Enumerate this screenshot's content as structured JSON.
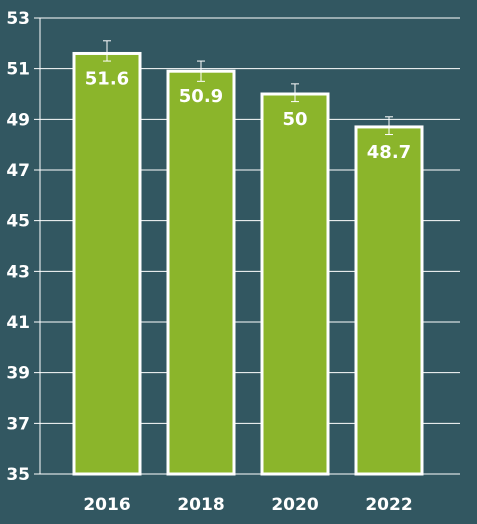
{
  "chart_data": {
    "type": "bar",
    "title": "",
    "xlabel": "",
    "ylabel": "",
    "categories": [
      "2016",
      "2018",
      "2020",
      "2022"
    ],
    "values": [
      51.6,
      50.9,
      50,
      48.7
    ],
    "data_labels": [
      "51.6",
      "50.9",
      "50",
      "48.7"
    ],
    "error_bars": [
      {
        "low": 51.3,
        "high": 52.1
      },
      {
        "low": 50.5,
        "high": 51.3
      },
      {
        "low": 49.7,
        "high": 50.4
      },
      {
        "low": 48.4,
        "high": 49.1
      }
    ],
    "ylim": [
      35,
      53
    ],
    "yticks": [
      "35",
      "37",
      "39",
      "41",
      "43",
      "45",
      "47",
      "49",
      "51",
      "53"
    ],
    "grid": true,
    "legend": "none",
    "colors": {
      "background": "#325761",
      "bar_fill": "#8bb52b",
      "bar_stroke": "#ffffff",
      "grid": "#ffffff",
      "text": "#ffffff"
    }
  }
}
